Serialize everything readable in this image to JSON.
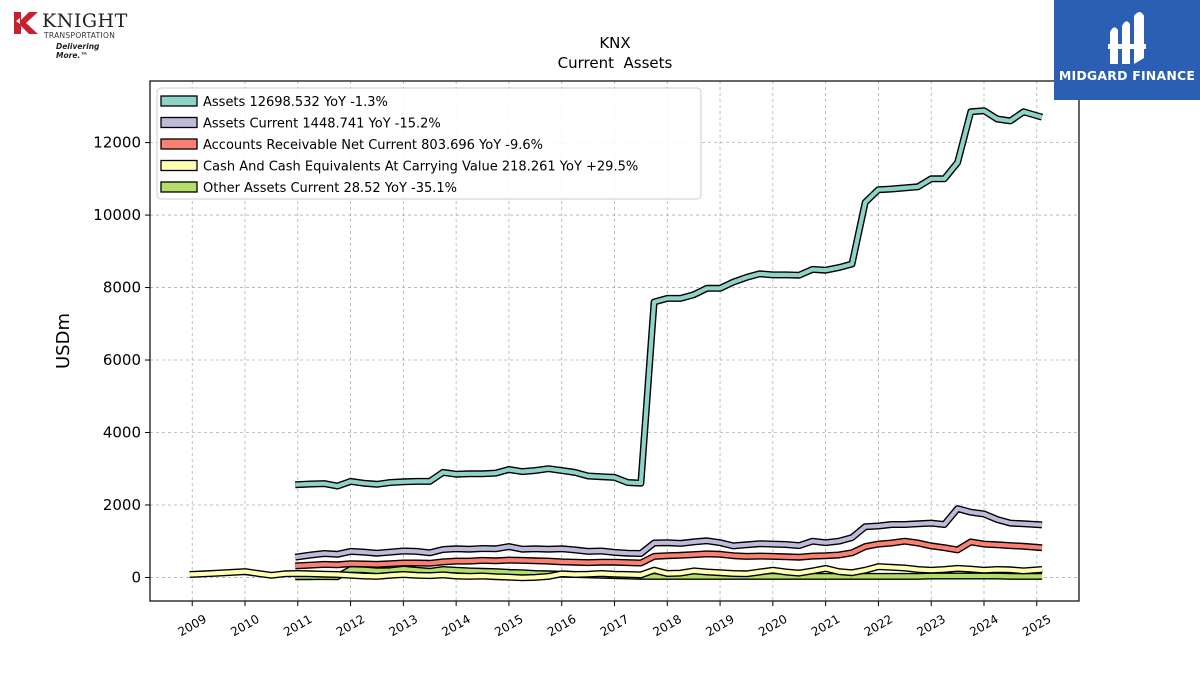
{
  "company_logo": {
    "name": "KNIGHT",
    "sub": "TRANSPORTATION",
    "tagline": "Delivering More.™"
  },
  "brand_logo": {
    "name": "MIDGARD FINANCE",
    "color": "#2b5fb3"
  },
  "chart_data": {
    "type": "line",
    "title": "KNX",
    "subtitle": "Current  Assets",
    "ylabel": "USDm",
    "xlabel": "",
    "ylim": [
      -650,
      13700
    ],
    "xlim": [
      2008.2,
      2025.8
    ],
    "yticks": [
      0,
      2000,
      4000,
      6000,
      8000,
      10000,
      12000
    ],
    "xticks": [
      "2009",
      "2010",
      "2011",
      "2012",
      "2013",
      "2014",
      "2015",
      "2016",
      "2017",
      "2018",
      "2019",
      "2020",
      "2021",
      "2022",
      "2023",
      "2024",
      "2025"
    ],
    "grid": true,
    "legend_position": "top-left",
    "series": [
      {
        "name": "Assets",
        "legend": "Assets  12698.532 YoY -1.3%",
        "color": "#8dd3c7",
        "x": [
          2010.95,
          2011.25,
          2011.5,
          2011.75,
          2012.0,
          2012.25,
          2012.5,
          2012.75,
          2013.0,
          2013.25,
          2013.5,
          2013.75,
          2014.0,
          2014.25,
          2014.5,
          2014.75,
          2015.0,
          2015.25,
          2015.5,
          2015.75,
          2016.0,
          2016.25,
          2016.5,
          2016.75,
          2017.0,
          2017.25,
          2017.5,
          2017.75,
          2018.0,
          2018.25,
          2018.5,
          2018.75,
          2019.0,
          2019.25,
          2019.5,
          2019.75,
          2020.0,
          2020.25,
          2020.5,
          2020.75,
          2021.0,
          2021.25,
          2021.5,
          2021.75,
          2022.0,
          2022.25,
          2022.5,
          2022.75,
          2023.0,
          2023.25,
          2023.5,
          2023.75,
          2024.0,
          2024.25,
          2024.5,
          2024.75,
          2025.1
        ],
        "y": [
          2560,
          2580,
          2590,
          2520,
          2650,
          2600,
          2570,
          2620,
          2640,
          2650,
          2650,
          2900,
          2850,
          2860,
          2860,
          2880,
          2980,
          2920,
          2950,
          3000,
          2950,
          2900,
          2800,
          2780,
          2760,
          2620,
          2600,
          7600,
          7700,
          7700,
          7800,
          7980,
          7980,
          8150,
          8280,
          8380,
          8350,
          8350,
          8340,
          8500,
          8480,
          8550,
          8650,
          10350,
          10700,
          10720,
          10750,
          10780,
          11000,
          11000,
          11450,
          12850,
          12880,
          12650,
          12600,
          12850,
          12700
        ]
      },
      {
        "name": "Assets Current",
        "legend": "Assets Current  1448.741 YoY -15.2%",
        "color": "#bebada",
        "x": [
          2010.95,
          2011.25,
          2011.5,
          2011.75,
          2012.0,
          2012.25,
          2012.5,
          2012.75,
          2013.0,
          2013.25,
          2013.5,
          2013.75,
          2014.0,
          2014.25,
          2014.5,
          2014.75,
          2015.0,
          2015.25,
          2015.5,
          2015.75,
          2016.0,
          2016.25,
          2016.5,
          2016.75,
          2017.0,
          2017.25,
          2017.5,
          2017.75,
          2018.0,
          2018.25,
          2018.5,
          2018.75,
          2019.0,
          2019.25,
          2019.5,
          2019.75,
          2020.0,
          2020.25,
          2020.5,
          2020.75,
          2021.0,
          2021.25,
          2021.5,
          2021.75,
          2022.0,
          2022.25,
          2022.5,
          2022.75,
          2023.0,
          2023.25,
          2023.5,
          2023.75,
          2024.0,
          2024.25,
          2024.5,
          2024.75,
          2025.1
        ],
        "y": [
          560,
          620,
          660,
          640,
          720,
          700,
          670,
          700,
          730,
          720,
          680,
          770,
          790,
          780,
          800,
          790,
          850,
          780,
          790,
          780,
          790,
          760,
          720,
          730,
          690,
          670,
          660,
          950,
          960,
          940,
          980,
          1010,
          960,
          870,
          900,
          930,
          920,
          910,
          880,
          1000,
          960,
          1000,
          1100,
          1400,
          1420,
          1460,
          1460,
          1480,
          1500,
          1460,
          1900,
          1800,
          1750,
          1600,
          1500,
          1480,
          1450
        ]
      },
      {
        "name": "Accounts Receivable Net Current",
        "legend": "Accounts Receivable Net Current  803.696 YoY -9.6%",
        "color": "#fb8072",
        "x": [
          2010.95,
          2011.25,
          2011.5,
          2011.75,
          2012.0,
          2012.25,
          2012.5,
          2012.75,
          2013.0,
          2013.25,
          2013.5,
          2013.75,
          2014.0,
          2014.25,
          2014.5,
          2014.75,
          2015.0,
          2015.25,
          2015.5,
          2015.75,
          2016.0,
          2016.25,
          2016.5,
          2016.75,
          2017.0,
          2017.25,
          2017.5,
          2017.75,
          2018.0,
          2018.25,
          2018.5,
          2018.75,
          2019.0,
          2019.25,
          2019.5,
          2019.75,
          2020.0,
          2020.25,
          2020.5,
          2020.75,
          2021.0,
          2021.25,
          2021.5,
          2021.75,
          2022.0,
          2022.25,
          2022.5,
          2022.75,
          2023.0,
          2023.25,
          2023.5,
          2023.75,
          2024.0,
          2024.25,
          2024.5,
          2024.75,
          2025.1
        ],
        "y": [
          320,
          340,
          360,
          350,
          380,
          370,
          360,
          380,
          400,
          400,
          390,
          430,
          450,
          450,
          470,
          460,
          480,
          470,
          460,
          450,
          430,
          420,
          410,
          420,
          420,
          410,
          400,
          580,
          600,
          610,
          630,
          650,
          640,
          600,
          580,
          590,
          580,
          570,
          560,
          590,
          600,
          620,
          680,
          850,
          920,
          950,
          1000,
          950,
          870,
          820,
          760,
          980,
          920,
          900,
          880,
          860,
          820
        ]
      },
      {
        "name": "Cash And Cash Equivalents At Carrying Value",
        "legend": "Cash And Cash Equivalents At Carrying Value  218.261 YoY +29.5%",
        "color": "#ffffb3",
        "x": [
          2008.95,
          2009.25,
          2009.5,
          2009.75,
          2010.0,
          2010.25,
          2010.5,
          2010.75,
          2011.0,
          2011.25,
          2011.5,
          2011.75,
          2012.0,
          2012.25,
          2012.5,
          2012.75,
          2013.0,
          2013.25,
          2013.5,
          2013.75,
          2014.0,
          2014.25,
          2014.5,
          2014.75,
          2015.0,
          2015.25,
          2015.5,
          2015.75,
          2016.0,
          2016.25,
          2016.5,
          2016.75,
          2017.0,
          2017.25,
          2017.5,
          2017.75,
          2018.0,
          2018.25,
          2018.5,
          2018.75,
          2019.0,
          2019.25,
          2019.5,
          2019.75,
          2020.0,
          2020.25,
          2020.5,
          2020.75,
          2021.0,
          2021.25,
          2021.5,
          2021.75,
          2022.0,
          2022.25,
          2022.5,
          2022.75,
          2023.0,
          2023.25,
          2023.5,
          2023.75,
          2024.0,
          2024.25,
          2024.5,
          2024.75,
          2025.1
        ],
        "y": [
          80,
          100,
          120,
          140,
          160,
          110,
          60,
          100,
          110,
          100,
          90,
          80,
          60,
          40,
          30,
          60,
          80,
          60,
          50,
          70,
          40,
          30,
          40,
          20,
          10,
          -10,
          0,
          30,
          100,
          80,
          90,
          110,
          90,
          80,
          70,
          200,
          110,
          120,
          180,
          150,
          130,
          110,
          100,
          150,
          200,
          150,
          120,
          180,
          250,
          160,
          130,
          200,
          300,
          280,
          260,
          220,
          200,
          220,
          250,
          230,
          200,
          220,
          210,
          180,
          220
        ]
      },
      {
        "name": "Other Assets Current",
        "legend": "Other Assets Current  28.52 YoY -35.1%",
        "color": "#b3de69",
        "x": [
          2010.95,
          2011.25,
          2011.5,
          2011.75,
          2012.0,
          2012.25,
          2012.5,
          2012.75,
          2013.0,
          2013.25,
          2013.5,
          2013.75,
          2014.0,
          2014.25,
          2014.5,
          2014.75,
          2015.0,
          2015.25,
          2015.5,
          2015.75,
          2016.0,
          2016.25,
          2016.5,
          2016.75,
          2017.0,
          2017.25,
          2017.5,
          2017.75,
          2018.0,
          2018.25,
          2018.5,
          2018.75,
          2019.0,
          2019.25,
          2019.5,
          2019.75,
          2020.0,
          2020.25,
          2020.5,
          2020.75,
          2021.0,
          2021.25,
          2021.5,
          2021.75,
          2022.0,
          2022.25,
          2022.5,
          2022.75,
          2023.0,
          2023.25,
          2023.5,
          2023.75,
          2024.0,
          2024.25,
          2024.5,
          2024.75,
          2025.1
        ],
        "y": [
          20,
          20,
          25,
          20,
          220,
          210,
          180,
          190,
          230,
          200,
          170,
          220,
          200,
          180,
          170,
          160,
          140,
          130,
          110,
          100,
          90,
          80,
          70,
          60,
          50,
          40,
          30,
          30,
          30,
          30,
          30,
          30,
          30,
          30,
          30,
          30,
          30,
          30,
          30,
          30,
          30,
          30,
          30,
          30,
          30,
          30,
          30,
          30,
          40,
          40,
          40,
          40,
          40,
          40,
          30,
          30,
          28
        ]
      }
    ]
  }
}
